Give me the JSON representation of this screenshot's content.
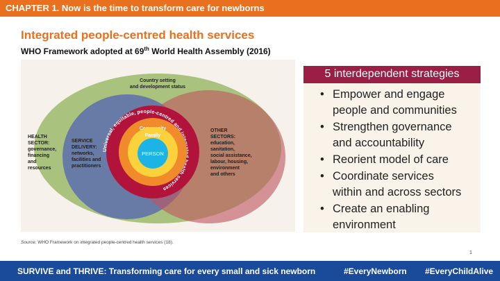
{
  "header": {
    "chapter": "CHAPTER 1. Now is the time to transform care for newborns"
  },
  "title": "Integrated people-centred health services",
  "subtitle": {
    "before": "WHO Framework adopted at 69",
    "sup": "th",
    "after": " World Health Assembly (2016)"
  },
  "diagram": {
    "country": [
      "Country setting",
      "and development status"
    ],
    "health_sector": [
      "HEALTH",
      "SECTOR:",
      "governance,",
      "financing",
      "and",
      "resources"
    ],
    "service_delivery": [
      "SERVICE",
      "DELIVERY:",
      "networks,",
      "facilities and",
      "practitioners"
    ],
    "other_sectors": [
      "OTHER",
      "SECTORS:",
      "education,",
      "sanitation,",
      "social assistance,",
      "labour, housing,",
      "environment",
      "and others"
    ],
    "ring_text": "Universal, equitable, people-centred and integrated health services",
    "community": "Community",
    "family": "Family",
    "person": "PERSON",
    "colors": {
      "green": "#8fb35a",
      "blue": "#5d6fae",
      "red": "#c0545e",
      "ring": "#b2133b",
      "orange": "#f08a2a",
      "yellow": "#fbd23b",
      "person": "#1cb3e6"
    }
  },
  "panel": {
    "heading": "5 interdependent strategies",
    "items": [
      {
        "line1": "Empower and engage",
        "line2": "people and communities"
      },
      {
        "line1": "Strengthen governance",
        "line2": "and accountability"
      },
      {
        "line1": "Reorient model of care",
        "line2": ""
      },
      {
        "line1": "Coordinate services",
        "line2": "within and across sectors"
      },
      {
        "line1": "Create an enabling",
        "line2": "environment"
      }
    ],
    "bullet": "•"
  },
  "source": {
    "label": "Source:",
    "text": " WHO Framework on integrated people-centred health services (18)."
  },
  "page_number": "1",
  "footer": {
    "left": "SURVIVE and THRIVE: Transforming care for every small and sick newborn",
    "tag1": "#EveryNewborn",
    "tag2": "#EveryChildAlive"
  }
}
